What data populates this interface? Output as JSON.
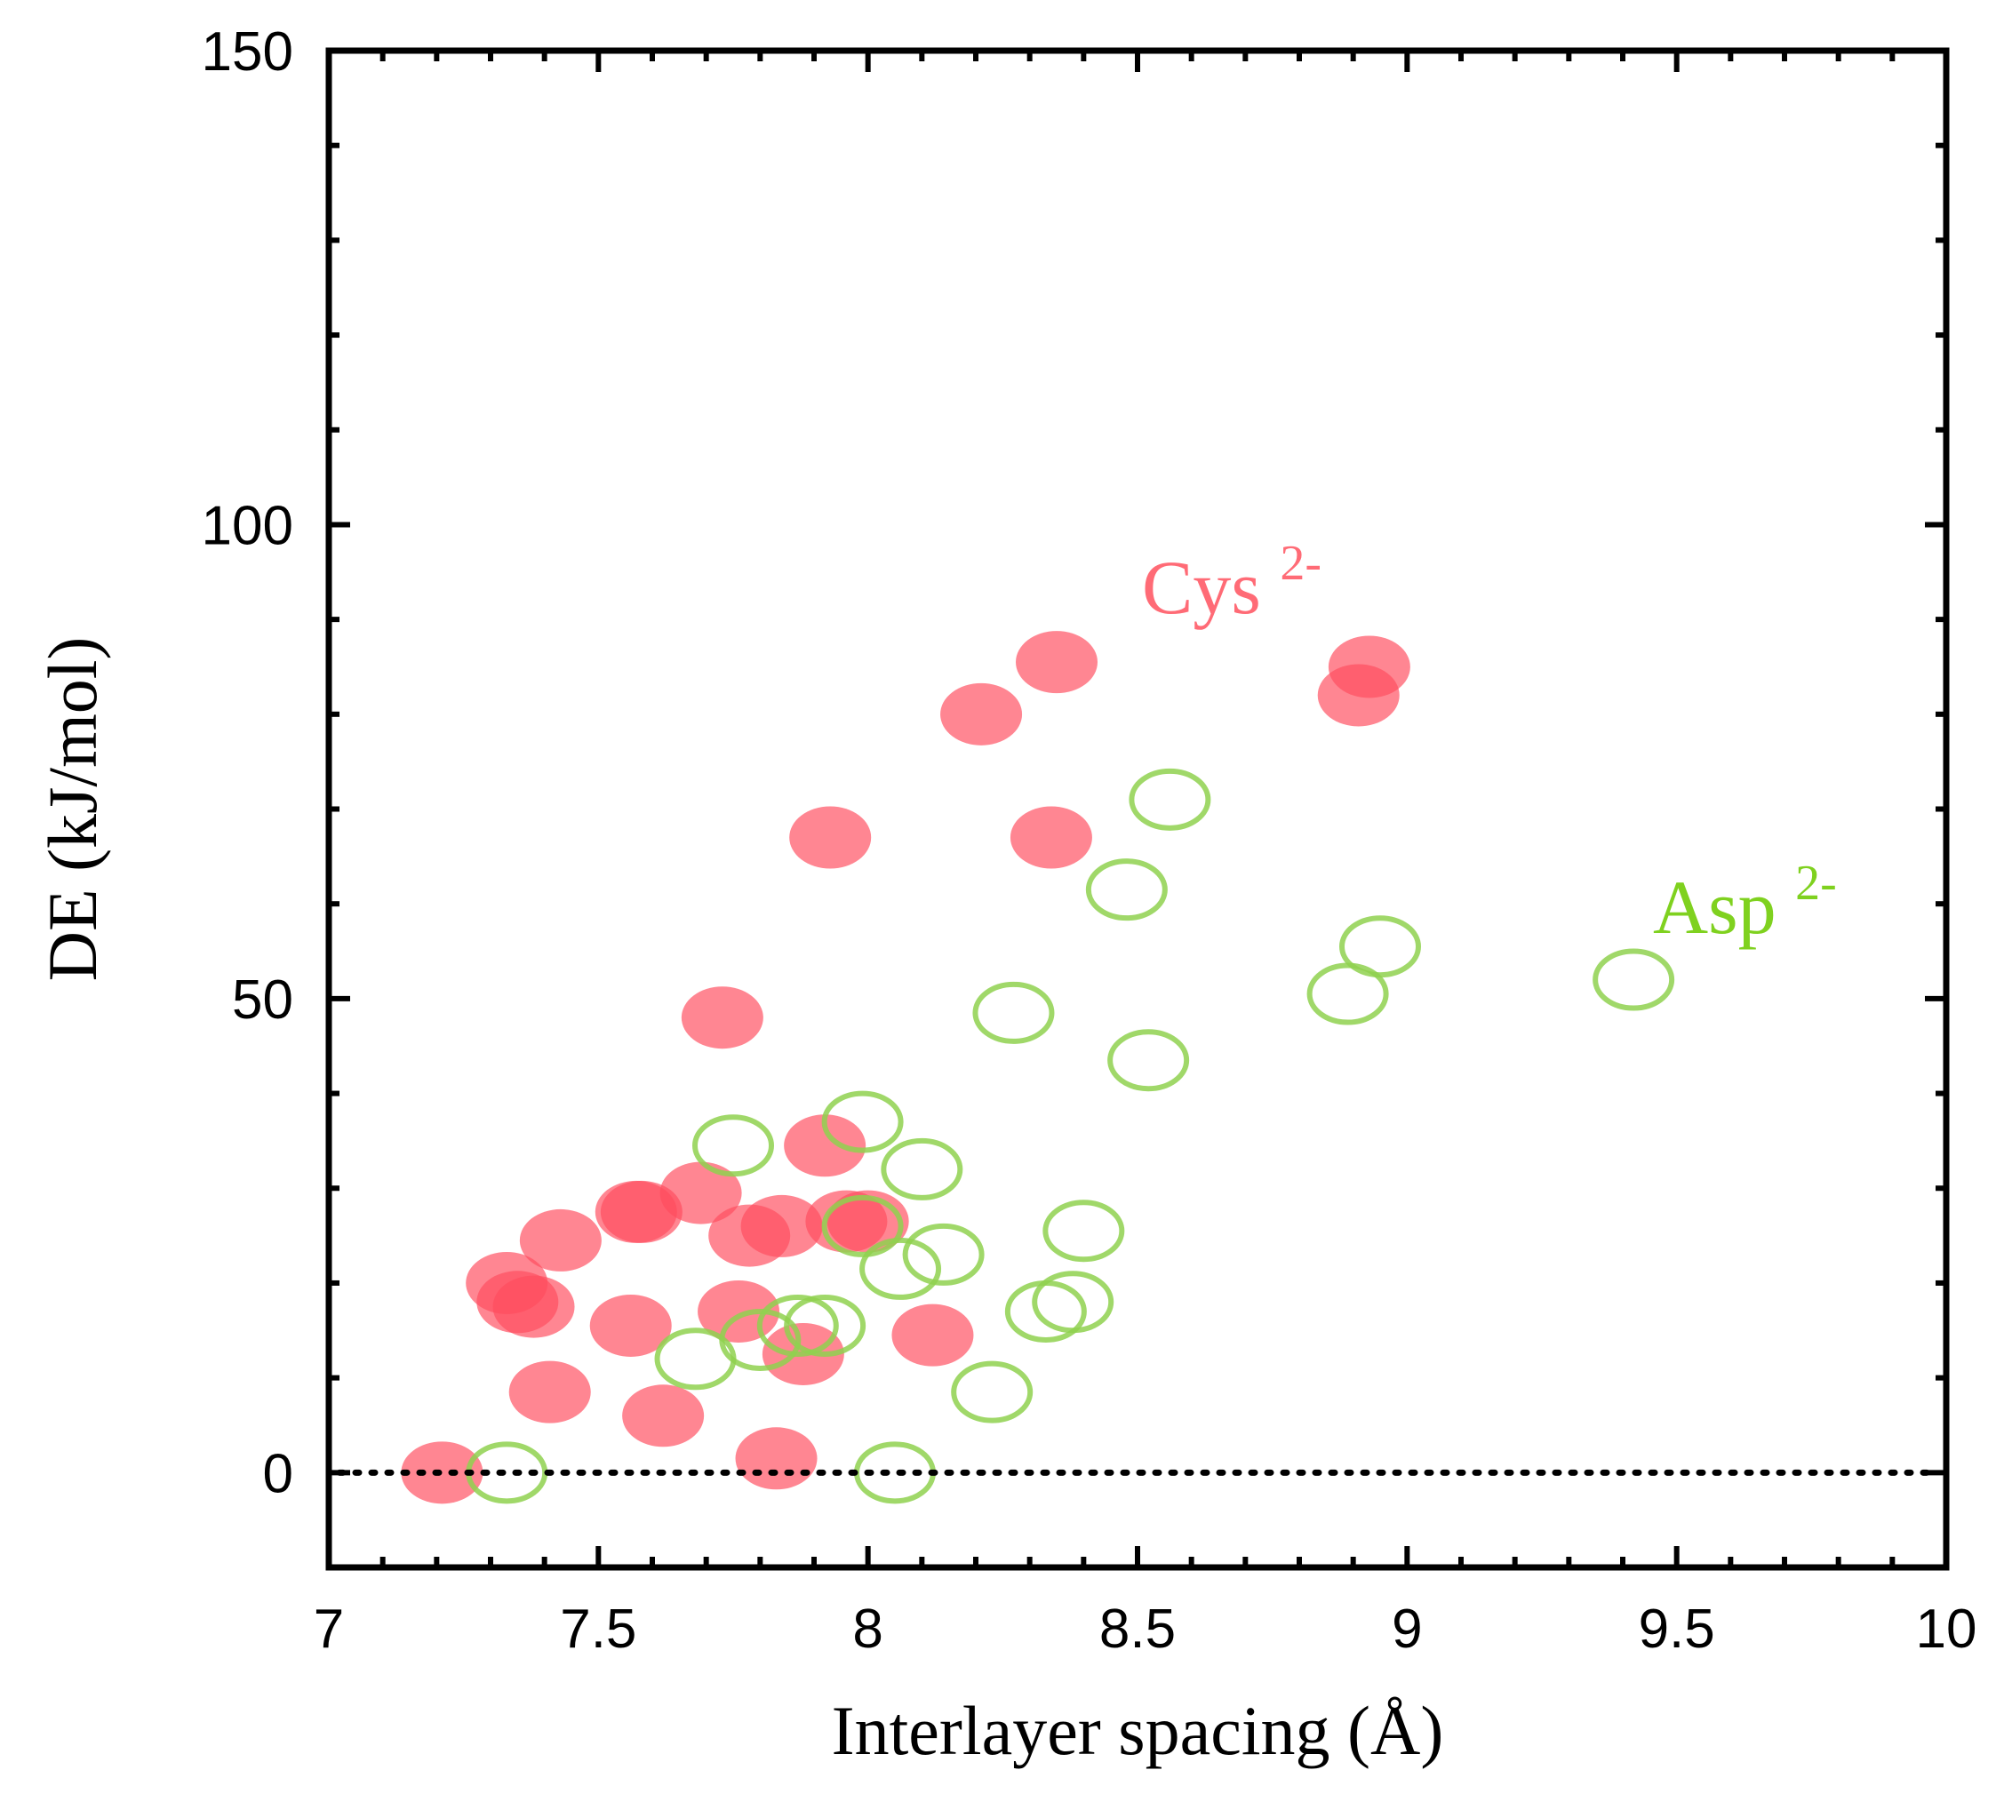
{
  "chart_data": {
    "type": "scatter",
    "xlabel": "Interlayer spacing (Å)",
    "ylabel": "DE (kJ/mol)",
    "xlim": [
      7,
      10
    ],
    "ylim": [
      -10,
      150
    ],
    "xticks": [
      7,
      7.5,
      8,
      8.5,
      9,
      9.5,
      10
    ],
    "xtick_labels": [
      "7",
      "7.5",
      "8",
      "8.5",
      "9",
      "9.5",
      "10"
    ],
    "yticks": [
      0,
      50,
      100,
      150
    ],
    "ytick_labels": [
      "0",
      "50",
      "100",
      "150"
    ],
    "reference_line": {
      "y": 0,
      "style": "dotted"
    },
    "grid": false,
    "series": [
      {
        "name": "Cys2-",
        "label_main": "Cys",
        "label_sup": "2-",
        "color": "#ff4d5e",
        "marker": "filled-circle",
        "points": [
          [
            7.21,
            0
          ],
          [
            7.33,
            20
          ],
          [
            7.35,
            18
          ],
          [
            7.38,
            17.5
          ],
          [
            7.41,
            8.5
          ],
          [
            7.43,
            24.5
          ],
          [
            7.56,
            15.5
          ],
          [
            7.57,
            27.5
          ],
          [
            7.58,
            27.5
          ],
          [
            7.62,
            6
          ],
          [
            7.69,
            29.5
          ],
          [
            7.73,
            48
          ],
          [
            7.76,
            17
          ],
          [
            7.78,
            25
          ],
          [
            7.83,
            1.5
          ],
          [
            7.84,
            26
          ],
          [
            7.88,
            12.5
          ],
          [
            7.92,
            34.5
          ],
          [
            7.93,
            67
          ],
          [
            7.96,
            26.5
          ],
          [
            8.0,
            26.5
          ],
          [
            8.12,
            14.5
          ],
          [
            8.21,
            80
          ],
          [
            8.34,
            67
          ],
          [
            8.35,
            85.5
          ],
          [
            8.91,
            82
          ],
          [
            8.93,
            85
          ]
        ]
      },
      {
        "name": "Asp2-",
        "label_main": "Asp",
        "label_sup": "2-",
        "color": "#8fd14f",
        "marker": "open-circle",
        "points": [
          [
            7.33,
            0
          ],
          [
            7.68,
            12
          ],
          [
            7.75,
            34.5
          ],
          [
            7.8,
            14
          ],
          [
            7.87,
            15.5
          ],
          [
            7.92,
            15.5
          ],
          [
            7.99,
            37
          ],
          [
            7.99,
            26
          ],
          [
            8.05,
            0
          ],
          [
            8.06,
            21.5
          ],
          [
            8.1,
            32
          ],
          [
            8.14,
            23
          ],
          [
            8.23,
            8.5
          ],
          [
            8.27,
            48.5
          ],
          [
            8.33,
            17
          ],
          [
            8.38,
            18
          ],
          [
            8.4,
            25.5
          ],
          [
            8.48,
            61.5
          ],
          [
            8.52,
            43.5
          ],
          [
            8.56,
            71
          ],
          [
            8.89,
            50.5
          ],
          [
            8.95,
            55.5
          ],
          [
            9.42,
            52
          ]
        ]
      }
    ]
  }
}
